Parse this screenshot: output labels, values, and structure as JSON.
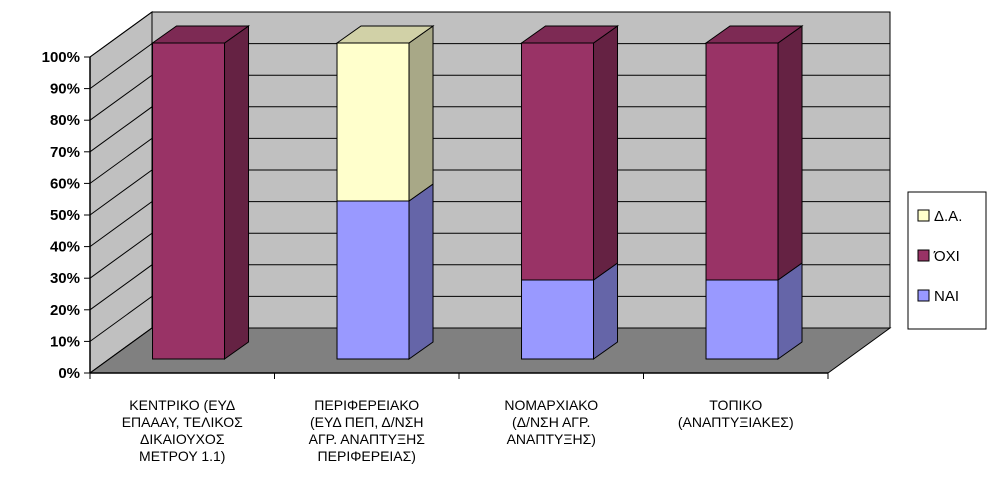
{
  "chart_data": {
    "type": "bar",
    "stacked": true,
    "percent_stacked": true,
    "three_d": true,
    "categories": [
      [
        "ΚΕΝΤΡΙΚΟ (ΕΥΔ",
        "ΕΠΑΑΑΥ, ΤΕΛΙΚΟΣ",
        "ΔΙΚΑΙΟΥΧΟΣ",
        "ΜΕΤΡΟΥ 1.1)"
      ],
      [
        "ΠΕΡΙΦΕΡΕΙΑΚΟ",
        "(ΕΥΔ ΠΕΠ, Δ/ΝΣΗ",
        "ΑΓΡ. ΑΝΑΠΤΥΞΗΣ",
        "ΠΕΡΙΦΕΡΕΙΑΣ)"
      ],
      [
        "ΝΟΜΑΡΧΙΑΚΟ",
        "(Δ/ΝΣΗ ΑΓΡ.",
        "ΑΝΑΠΤΥΞΗΣ)"
      ],
      [
        "ΤΟΠΙΚΟ",
        "(ΑΝΑΠΤΥΞΙΑΚΕΣ)"
      ]
    ],
    "series": [
      {
        "name": "ΝΑΙ",
        "color": "#9999FF",
        "values": [
          0,
          50,
          25,
          25
        ]
      },
      {
        "name": "ΌΧΙ",
        "color": "#993366",
        "values": [
          100,
          0,
          75,
          75
        ]
      },
      {
        "name": "Δ.Α.",
        "color": "#FFFFCC",
        "values": [
          0,
          50,
          0,
          0
        ]
      }
    ],
    "y_ticks": [
      "0%",
      "10%",
      "20%",
      "30%",
      "40%",
      "50%",
      "60%",
      "70%",
      "80%",
      "90%",
      "100%"
    ],
    "ylim": [
      0,
      100
    ],
    "grid": true,
    "legend_position": "right",
    "wall_color": "#C0C0C0",
    "floor_color": "#808080"
  }
}
